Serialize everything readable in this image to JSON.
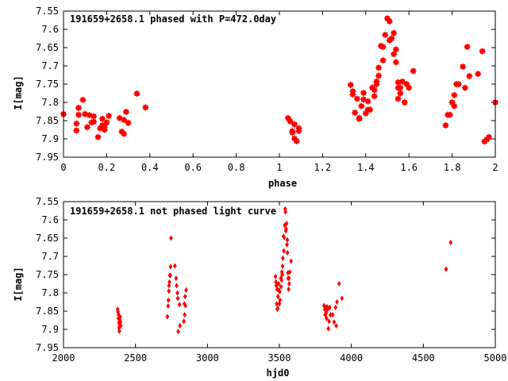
{
  "colors": {
    "points": "#ff0000",
    "axes": "#000000",
    "background": "#ffffff"
  },
  "chart_data": [
    {
      "type": "scatter",
      "title": "191659+2658.1 phased with P=472.0day",
      "xlabel": "phase",
      "ylabel": "I[mag]",
      "xlim": [
        0,
        2
      ],
      "ylim": [
        7.55,
        7.95
      ],
      "y_inverted": true,
      "grid": false,
      "marker": "filled-square-cross",
      "x_ticks": [
        "0",
        "0.2",
        "0.4",
        "0.6",
        "0.8",
        "1",
        "1.2",
        "1.4",
        "1.6",
        "1.8",
        "2"
      ],
      "y_ticks": [
        "7.55",
        "7.6",
        "7.65",
        "7.7",
        "7.75",
        "7.8",
        "7.85",
        "7.9",
        "7.95"
      ],
      "series": [
        {
          "points": [
            [
              0.0,
              7.832
            ],
            [
              0.06,
              7.858
            ],
            [
              0.06,
              7.877
            ],
            [
              0.07,
              7.834
            ],
            [
              0.07,
              7.815
            ],
            [
              0.09,
              7.793
            ],
            [
              0.1,
              7.832
            ],
            [
              0.11,
              7.868
            ],
            [
              0.12,
              7.835
            ],
            [
              0.13,
              7.855
            ],
            [
              0.14,
              7.838
            ],
            [
              0.14,
              7.853
            ],
            [
              0.16,
              7.895
            ],
            [
              0.17,
              7.871
            ],
            [
              0.18,
              7.863
            ],
            [
              0.18,
              7.845
            ],
            [
              0.19,
              7.875
            ],
            [
              0.19,
              7.868
            ],
            [
              0.2,
              7.855
            ],
            [
              0.21,
              7.837
            ],
            [
              0.26,
              7.843
            ],
            [
              0.27,
              7.88
            ],
            [
              0.28,
              7.886
            ],
            [
              0.28,
              7.848
            ],
            [
              0.29,
              7.826
            ],
            [
              0.3,
              7.856
            ],
            [
              0.34,
              7.776
            ],
            [
              0.38,
              7.814
            ],
            [
              1.04,
              7.843
            ],
            [
              1.05,
              7.852
            ],
            [
              1.06,
              7.879
            ],
            [
              1.06,
              7.882
            ],
            [
              1.07,
              7.86
            ],
            [
              1.07,
              7.899
            ],
            [
              1.08,
              7.906
            ],
            [
              1.09,
              7.878
            ],
            [
              1.09,
              7.871
            ],
            [
              1.33,
              7.752
            ],
            [
              1.34,
              7.77
            ],
            [
              1.34,
              7.778
            ],
            [
              1.35,
              7.828
            ],
            [
              1.36,
              7.79
            ],
            [
              1.37,
              7.845
            ],
            [
              1.37,
              7.843
            ],
            [
              1.38,
              7.81
            ],
            [
              1.39,
              7.774
            ],
            [
              1.39,
              7.792
            ],
            [
              1.4,
              7.83
            ],
            [
              1.41,
              7.797
            ],
            [
              1.41,
              7.82
            ],
            [
              1.42,
              7.82
            ],
            [
              1.43,
              7.76
            ],
            [
              1.44,
              7.783
            ],
            [
              1.44,
              7.766
            ],
            [
              1.45,
              7.743
            ],
            [
              1.45,
              7.75
            ],
            [
              1.46,
              7.727
            ],
            [
              1.46,
              7.705
            ],
            [
              1.47,
              7.645
            ],
            [
              1.48,
              7.685
            ],
            [
              1.48,
              7.648
            ],
            [
              1.49,
              7.615
            ],
            [
              1.5,
              7.57
            ],
            [
              1.51,
              7.578
            ],
            [
              1.51,
              7.63
            ],
            [
              1.52,
              7.625
            ],
            [
              1.53,
              7.61
            ],
            [
              1.53,
              7.668
            ],
            [
              1.54,
              7.655
            ],
            [
              1.54,
              7.69
            ],
            [
              1.55,
              7.745
            ],
            [
              1.55,
              7.76
            ],
            [
              1.55,
              7.79
            ],
            [
              1.56,
              7.76
            ],
            [
              1.56,
              7.775
            ],
            [
              1.57,
              7.743
            ],
            [
              1.58,
              7.8
            ],
            [
              1.59,
              7.75
            ],
            [
              1.6,
              7.76
            ],
            [
              1.62,
              7.714
            ],
            [
              1.77,
              7.863
            ],
            [
              1.78,
              7.834
            ],
            [
              1.79,
              7.834
            ],
            [
              1.8,
              7.8
            ],
            [
              1.81,
              7.78
            ],
            [
              1.81,
              7.81
            ],
            [
              1.82,
              7.75
            ],
            [
              1.83,
              7.75
            ],
            [
              1.85,
              7.702
            ],
            [
              1.86,
              7.76
            ],
            [
              1.87,
              7.648
            ],
            [
              1.88,
              7.728
            ],
            [
              1.92,
              7.722
            ],
            [
              1.94,
              7.66
            ],
            [
              1.95,
              7.907
            ],
            [
              1.96,
              7.902
            ],
            [
              1.97,
              7.895
            ],
            [
              2.0,
              7.8
            ]
          ]
        }
      ]
    },
    {
      "type": "scatter",
      "title": "191659+2658.1 not phased light curve",
      "xlabel": "hjd0",
      "ylabel": "I[mag]",
      "xlim": [
        2000,
        5000
      ],
      "ylim": [
        7.55,
        7.95
      ],
      "y_inverted": true,
      "grid": false,
      "marker": "small-diamond",
      "x_ticks": [
        "2000",
        "2500",
        "3000",
        "3500",
        "4000",
        "4500",
        "5000"
      ],
      "y_ticks": [
        "7.55",
        "7.6",
        "7.65",
        "7.7",
        "7.75",
        "7.8",
        "7.85",
        "7.9",
        "7.95"
      ],
      "series": [
        {
          "points": [
            [
              2376,
              7.845
            ],
            [
              2378,
              7.852
            ],
            [
              2382,
              7.87
            ],
            [
              2383,
              7.86
            ],
            [
              2385,
              7.882
            ],
            [
              2387,
              7.896
            ],
            [
              2388,
              7.905
            ],
            [
              2390,
              7.89
            ],
            [
              2392,
              7.875
            ],
            [
              2394,
              7.866
            ],
            [
              2396,
              7.88
            ],
            [
              2398,
              7.89
            ],
            [
              2722,
              7.865
            ],
            [
              2727,
              7.836
            ],
            [
              2729,
              7.82
            ],
            [
              2732,
              7.795
            ],
            [
              2733,
              7.78
            ],
            [
              2736,
              7.77
            ],
            [
              2738,
              7.752
            ],
            [
              2742,
              7.752
            ],
            [
              2744,
              7.728
            ],
            [
              2747,
              7.65
            ],
            [
              2774,
              7.726
            ],
            [
              2782,
              7.76
            ],
            [
              2786,
              7.78
            ],
            [
              2791,
              7.8
            ],
            [
              2794,
              7.815
            ],
            [
              2797,
              7.906
            ],
            [
              2806,
              7.832
            ],
            [
              2809,
              7.89
            ],
            [
              2836,
              7.878
            ],
            [
              2840,
              7.83
            ],
            [
              2842,
              7.86
            ],
            [
              2845,
              7.81
            ],
            [
              2847,
              7.835
            ],
            [
              2852,
              7.792
            ],
            [
              3473,
              7.755
            ],
            [
              3476,
              7.77
            ],
            [
              3478,
              7.78
            ],
            [
              3481,
              7.83
            ],
            [
              3484,
              7.79
            ],
            [
              3486,
              7.845
            ],
            [
              3488,
              7.842
            ],
            [
              3490,
              7.81
            ],
            [
              3495,
              7.775
            ],
            [
              3497,
              7.792
            ],
            [
              3500,
              7.83
            ],
            [
              3502,
              7.797
            ],
            [
              3504,
              7.82
            ],
            [
              3510,
              7.76
            ],
            [
              3512,
              7.783
            ],
            [
              3515,
              7.765
            ],
            [
              3517,
              7.743
            ],
            [
              3520,
              7.75
            ],
            [
              3522,
              7.727
            ],
            [
              3524,
              7.705
            ],
            [
              3528,
              7.645
            ],
            [
              3531,
              7.685
            ],
            [
              3533,
              7.648
            ],
            [
              3537,
              7.615
            ],
            [
              3540,
              7.57
            ],
            [
              3542,
              7.578
            ],
            [
              3545,
              7.63
            ],
            [
              3547,
              7.625
            ],
            [
              3550,
              7.61
            ],
            [
              3553,
              7.668
            ],
            [
              3555,
              7.655
            ],
            [
              3556,
              7.69
            ],
            [
              3559,
              7.745
            ],
            [
              3561,
              7.76
            ],
            [
              3564,
              7.79
            ],
            [
              3566,
              7.76
            ],
            [
              3568,
              7.775
            ],
            [
              3572,
              7.743
            ],
            [
              3581,
              7.713
            ],
            [
              3810,
              7.835
            ],
            [
              3815,
              7.845
            ],
            [
              3818,
              7.86
            ],
            [
              3822,
              7.84
            ],
            [
              3825,
              7.855
            ],
            [
              3828,
              7.87
            ],
            [
              3832,
              7.838
            ],
            [
              3835,
              7.845
            ],
            [
              3840,
              7.898
            ],
            [
              3845,
              7.878
            ],
            [
              3850,
              7.84
            ],
            [
              3855,
              7.86
            ],
            [
              3870,
              7.86
            ],
            [
              3880,
              7.88
            ],
            [
              3890,
              7.84
            ],
            [
              3895,
              7.89
            ],
            [
              3900,
              7.825
            ],
            [
              3915,
              7.775
            ],
            [
              3935,
              7.815
            ],
            [
              4658,
              7.735
            ],
            [
              4690,
              7.662
            ]
          ]
        }
      ]
    }
  ]
}
